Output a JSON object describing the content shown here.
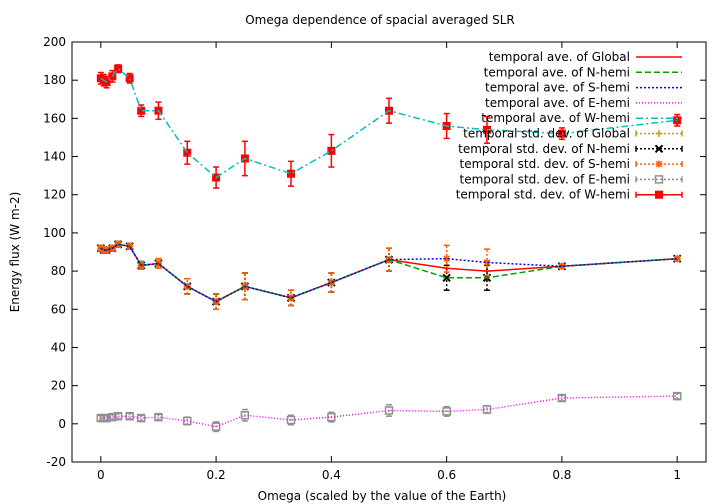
{
  "chart_data": {
    "type": "line",
    "title": "Omega dependence of spacial averaged SLR",
    "xlabel": "Omega (scaled by the value of the Earth)",
    "ylabel": "Energy flux (W m-2)",
    "xlim": [
      -0.05,
      1.05
    ],
    "ylim": [
      -20,
      200
    ],
    "xticks": [
      0,
      0.2,
      0.4,
      0.6,
      0.8,
      1
    ],
    "xtick_labels": [
      "0",
      "0.2",
      "0.4",
      "0.6",
      "0.8",
      "1"
    ],
    "yticks": [
      -20,
      0,
      20,
      40,
      60,
      80,
      100,
      120,
      140,
      160,
      180,
      200
    ],
    "ytick_labels": [
      "-20",
      "0",
      "20",
      "40",
      "60",
      "80",
      "100",
      "120",
      "140",
      "160",
      "180",
      "200"
    ],
    "legend_position": "top-right",
    "x": [
      0,
      0.005,
      0.01,
      0.02,
      0.03,
      0.05,
      0.07,
      0.1,
      0.15,
      0.2,
      0.25,
      0.33,
      0.4,
      0.5,
      0.6,
      0.67,
      0.8,
      1
    ],
    "series": [
      {
        "name": "temporal ave. of Global",
        "kind": "line",
        "color": "#ff0000",
        "dash": "",
        "values": [
          92,
          91,
          91,
          92,
          94,
          93,
          83,
          84,
          72,
          64,
          72,
          66,
          74,
          86,
          81.5,
          80,
          82.5,
          86.5
        ]
      },
      {
        "name": "temporal ave. of N-hemi",
        "kind": "line",
        "color": "#00a000",
        "dash": "6,3",
        "values": [
          92,
          91,
          91,
          92,
          94,
          93,
          83,
          84,
          72,
          64,
          72,
          66,
          74,
          86,
          76.5,
          76.5,
          82.5,
          86.5
        ]
      },
      {
        "name": "temporal ave. of S-hemi",
        "kind": "line",
        "color": "#0000ff",
        "dash": "2,2",
        "values": [
          92,
          91,
          91,
          92,
          94,
          93,
          83,
          84,
          72,
          64,
          72,
          66,
          74,
          86,
          86.5,
          84.5,
          82.5,
          86.5
        ]
      },
      {
        "name": "temporal ave. of E-hemi",
        "kind": "line",
        "color": "#ff00ff",
        "dash": "1,2",
        "values": [
          3,
          3,
          3,
          3.5,
          4,
          4,
          3,
          3.5,
          1.5,
          -1.5,
          4.5,
          2,
          3.5,
          7,
          6.5,
          7.5,
          13.5,
          14.5
        ]
      },
      {
        "name": "temporal ave. of W-hemi",
        "kind": "line",
        "color": "#00c0c0",
        "dash": "7,3,2,3",
        "values": [
          181,
          180,
          179,
          182,
          186,
          181,
          164,
          164,
          142,
          129,
          139,
          131,
          143,
          164,
          156,
          154,
          152,
          159
        ]
      },
      {
        "name": "temporal std. dev. of Global",
        "kind": "points",
        "color": "#c0a000",
        "marker": "plus",
        "values": [
          92,
          91,
          91,
          92,
          94,
          93,
          83,
          84,
          72,
          64,
          72,
          66,
          74,
          86,
          81.5,
          80,
          82.5,
          86.5
        ],
        "err": [
          1.5,
          1.5,
          1.5,
          1.5,
          1.5,
          1.5,
          2,
          2.5,
          4,
          4,
          7,
          4,
          5,
          6,
          5,
          5,
          1,
          1
        ]
      },
      {
        "name": "temporal std. dev. of N-hemi",
        "kind": "points",
        "color": "#000000",
        "marker": "cross",
        "values": [
          92,
          91,
          91,
          92,
          94,
          93,
          83,
          84,
          72,
          64,
          72,
          66,
          74,
          86,
          76.5,
          76.5,
          82.5,
          86.5
        ],
        "err": [
          1.5,
          1.5,
          1.5,
          1.5,
          1.5,
          1.5,
          2,
          2.5,
          4,
          4,
          7,
          4,
          5,
          6,
          6.5,
          6.5,
          1,
          1
        ]
      },
      {
        "name": "temporal std. dev. of S-hemi",
        "kind": "points",
        "color": "#ff6000",
        "marker": "star",
        "values": [
          92,
          91,
          91,
          92,
          94,
          93,
          83,
          84,
          72,
          64,
          72,
          66,
          74,
          86,
          86.5,
          84.5,
          82.5,
          86.5
        ],
        "err": [
          1.5,
          1.5,
          1.5,
          1.5,
          1.5,
          1.5,
          2,
          2.5,
          4,
          4,
          7,
          4,
          5,
          6,
          7,
          7,
          1,
          1
        ]
      },
      {
        "name": "temporal std. dev. of E-hemi",
        "kind": "points",
        "color": "#909090",
        "marker": "square",
        "values": [
          3,
          3,
          3,
          3.5,
          4,
          4,
          3,
          3.5,
          1.5,
          -1.5,
          4.5,
          2,
          3.5,
          7,
          6.5,
          7.5,
          13.5,
          14.5
        ],
        "err": [
          1.5,
          1.5,
          1.5,
          1.5,
          1.5,
          1.5,
          1.5,
          1.5,
          2,
          2.5,
          3,
          2.5,
          2.5,
          3,
          2.5,
          2,
          1.5,
          1.5
        ]
      },
      {
        "name": "temporal std. dev. of W-hemi",
        "kind": "points",
        "color": "#ff0000",
        "marker": "filledsquare",
        "values": [
          181,
          180,
          179,
          182,
          186,
          181,
          164,
          164,
          142,
          129,
          139,
          131,
          143,
          164,
          156,
          154,
          152,
          159
        ],
        "err": [
          3,
          3,
          3,
          3,
          2,
          2.5,
          3,
          4.5,
          6,
          5.5,
          9,
          6.5,
          8.5,
          6.5,
          6.5,
          7,
          3,
          3
        ]
      }
    ]
  }
}
